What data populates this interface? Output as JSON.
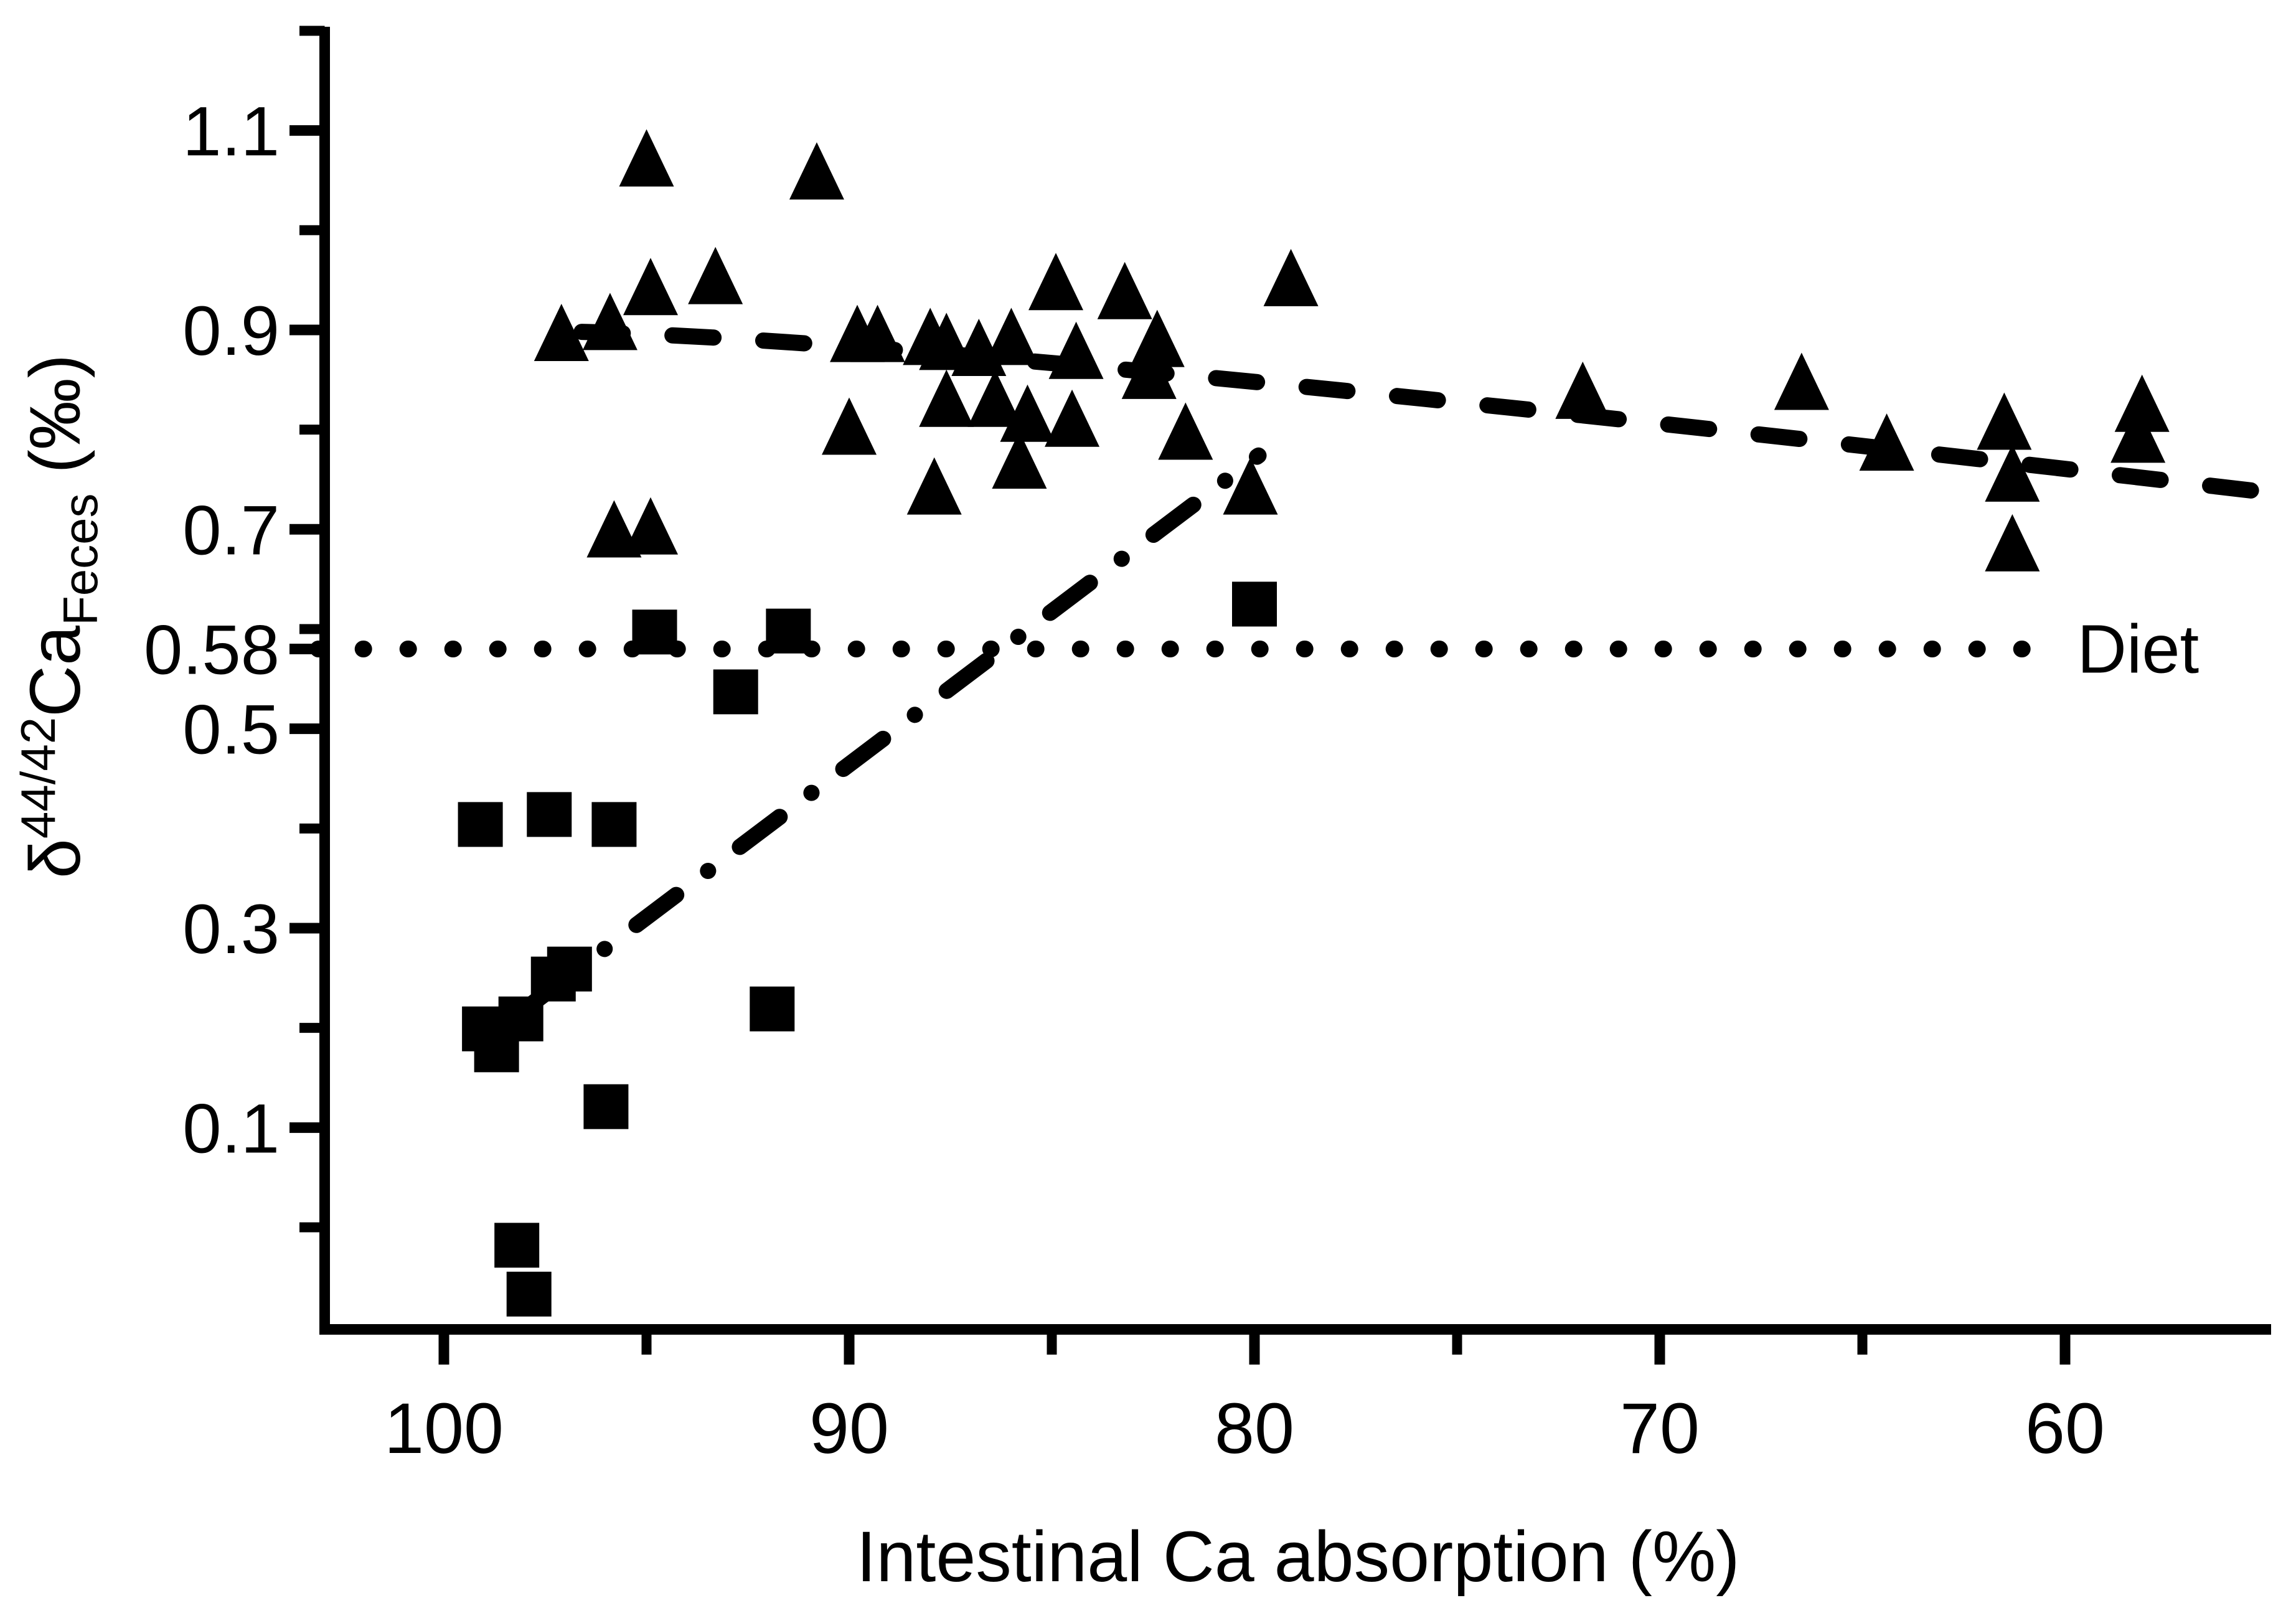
{
  "figure": {
    "background": "#ffffff",
    "ink_color": "#000000",
    "diet_label": "Diet",
    "xlabel": "Intestinal Ca absorption (%)",
    "ylabel_parts": {
      "prefix": "δ",
      "sup": "44/42",
      "main": "Ca",
      "sub": "Feces",
      "suffix": " (‰)"
    }
  },
  "chart_data": {
    "type": "scatter",
    "title": "",
    "xlabel": "Intestinal Ca absorption (%)",
    "ylabel": "δ44/42Ca_Feces (‰)",
    "grid": false,
    "legend": "none",
    "x_axis": {
      "reversed": true,
      "min": 54.9,
      "max": 103.1,
      "major_ticks": [
        100,
        90,
        80,
        70,
        60
      ],
      "major_tick_labels": [
        "100",
        "90",
        "80",
        "70",
        "60"
      ],
      "minor_ticks": [
        95,
        85,
        75,
        65
      ]
    },
    "y_axis": {
      "min": -0.1,
      "max": 1.2,
      "labeled_ticks": [
        1.1,
        0.9,
        0.7,
        0.58,
        0.5,
        0.3,
        0.1
      ],
      "labeled_tick_texts": [
        "1.1",
        "0.9",
        "0.7",
        "0.58",
        "0.5",
        "0.3",
        "0.1"
      ],
      "minor_ticks": [
        1.2,
        1.0,
        0.8,
        0.6,
        0.4,
        0.2,
        0.0
      ]
    },
    "series": [
      {
        "name": "feces-triangles",
        "marker": "triangle",
        "points": [
          [
            95.0,
            1.07
          ],
          [
            90.8,
            1.057
          ],
          [
            97.1,
            0.895
          ],
          [
            95.9,
            0.906
          ],
          [
            94.9,
            0.941
          ],
          [
            93.3,
            0.952
          ],
          [
            90.0,
            0.801
          ],
          [
            89.8,
            0.894
          ],
          [
            89.3,
            0.894
          ],
          [
            88.0,
            0.891
          ],
          [
            87.9,
            0.741
          ],
          [
            87.6,
            0.886
          ],
          [
            87.6,
            0.829
          ],
          [
            86.8,
            0.88
          ],
          [
            86.4,
            0.829
          ],
          [
            86.0,
            0.891
          ],
          [
            85.8,
            0.767
          ],
          [
            85.6,
            0.814
          ],
          [
            84.9,
            0.946
          ],
          [
            84.5,
            0.809
          ],
          [
            84.4,
            0.877
          ],
          [
            83.2,
            0.937
          ],
          [
            82.6,
            0.857
          ],
          [
            82.4,
            0.889
          ],
          [
            81.7,
            0.796
          ],
          [
            80.1,
            0.741
          ],
          [
            79.1,
            0.95
          ],
          [
            95.8,
            0.698
          ],
          [
            94.9,
            0.701
          ],
          [
            71.9,
            0.837
          ],
          [
            66.5,
            0.846
          ],
          [
            64.4,
            0.785
          ],
          [
            61.5,
            0.806
          ],
          [
            61.3,
            0.754
          ],
          [
            61.3,
            0.684
          ],
          [
            58.2,
            0.793
          ],
          [
            58.1,
            0.824
          ]
        ]
      },
      {
        "name": "feces-squares",
        "marker": "square",
        "points": [
          [
            94.8,
            0.597
          ],
          [
            91.5,
            0.598
          ],
          [
            92.8,
            0.537
          ],
          [
            99.1,
            0.404
          ],
          [
            97.4,
            0.414
          ],
          [
            95.8,
            0.404
          ],
          [
            91.9,
            0.219
          ],
          [
            96.9,
            0.259
          ],
          [
            97.3,
            0.249
          ],
          [
            98.1,
            0.209
          ],
          [
            99.0,
            0.199
          ],
          [
            98.7,
            0.178
          ],
          [
            96.0,
            0.121
          ],
          [
            98.2,
            -0.018
          ],
          [
            97.9,
            -0.067
          ],
          [
            80.0,
            0.625
          ]
        ]
      }
    ],
    "lines": [
      {
        "name": "triangle-trend",
        "style": "dashed",
        "anchors": [
          [
            96.6,
            0.898
          ],
          [
            81.3,
            0.853
          ],
          [
            55.2,
            0.738
          ]
        ]
      },
      {
        "name": "square-trend",
        "style": "dashdot",
        "anchors": [
          [
            97.8,
            0.225
          ],
          [
            79.9,
            0.774
          ]
        ]
      },
      {
        "name": "diet-reference",
        "style": "dotted",
        "y": 0.58,
        "x_start": 103.1,
        "x_end": 60.3,
        "label": "Diet",
        "label_x": 59.7
      }
    ]
  }
}
